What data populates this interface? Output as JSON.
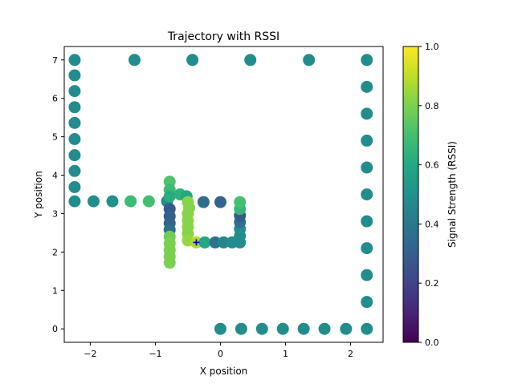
{
  "chart_data": {
    "type": "scatter",
    "title": "Trajectory with RSSI",
    "xlabel": "X position",
    "ylabel": "Y position",
    "xlim": [
      -2.4,
      2.5
    ],
    "ylim": [
      -0.35,
      7.35
    ],
    "xticks": [
      -2,
      -1,
      0,
      1,
      2
    ],
    "xtick_labels": [
      "−2",
      "−1",
      "0",
      "1",
      "2"
    ],
    "yticks": [
      0,
      1,
      2,
      3,
      4,
      5,
      6,
      7
    ],
    "ytick_labels": [
      "0",
      "1",
      "2",
      "3",
      "4",
      "5",
      "6",
      "7"
    ],
    "grid": false,
    "colormap": "viridis",
    "colorbar": {
      "label": "Signal Strength (RSSI)",
      "range": [
        0.0,
        1.0
      ],
      "ticks": [
        0.0,
        0.2,
        0.4,
        0.6,
        0.8,
        1.0
      ],
      "tick_labels": [
        "0.0",
        "0.2",
        "0.4",
        "0.6",
        "0.8",
        "1.0"
      ]
    },
    "marker_color": "#0000cc",
    "marker": [
      -0.37,
      2.25
    ],
    "points": [
      {
        "x": -2.24,
        "y": 7.0,
        "rssi": 0.48
      },
      {
        "x": -2.24,
        "y": 6.6,
        "rssi": 0.48
      },
      {
        "x": -2.24,
        "y": 6.19,
        "rssi": 0.48
      },
      {
        "x": -2.24,
        "y": 5.77,
        "rssi": 0.48
      },
      {
        "x": -2.24,
        "y": 5.36,
        "rssi": 0.48
      },
      {
        "x": -2.24,
        "y": 4.94,
        "rssi": 0.48
      },
      {
        "x": -2.24,
        "y": 4.52,
        "rssi": 0.48
      },
      {
        "x": -2.24,
        "y": 4.11,
        "rssi": 0.48
      },
      {
        "x": -2.24,
        "y": 3.69,
        "rssi": 0.48
      },
      {
        "x": -2.24,
        "y": 3.32,
        "rssi": 0.48
      },
      {
        "x": -1.95,
        "y": 3.32,
        "rssi": 0.48
      },
      {
        "x": -1.66,
        "y": 3.32,
        "rssi": 0.5
      },
      {
        "x": -1.38,
        "y": 3.32,
        "rssi": 0.68
      },
      {
        "x": -1.1,
        "y": 3.32,
        "rssi": 0.7
      },
      {
        "x": -0.82,
        "y": 3.32,
        "rssi": 0.48
      },
      {
        "x": -0.78,
        "y": 3.83,
        "rssi": 0.72
      },
      {
        "x": -0.78,
        "y": 3.62,
        "rssi": 0.68
      },
      {
        "x": -0.78,
        "y": 3.45,
        "rssi": 0.62
      },
      {
        "x": -0.78,
        "y": 3.12,
        "rssi": 0.28
      },
      {
        "x": -0.78,
        "y": 2.93,
        "rssi": 0.3
      },
      {
        "x": -0.78,
        "y": 2.75,
        "rssi": 0.32
      },
      {
        "x": -0.78,
        "y": 2.58,
        "rssi": 0.36
      },
      {
        "x": -0.78,
        "y": 2.4,
        "rssi": 0.78
      },
      {
        "x": -0.78,
        "y": 2.22,
        "rssi": 0.8
      },
      {
        "x": -0.78,
        "y": 2.05,
        "rssi": 0.8
      },
      {
        "x": -0.78,
        "y": 1.88,
        "rssi": 0.8
      },
      {
        "x": -0.78,
        "y": 1.72,
        "rssi": 0.8
      },
      {
        "x": -0.62,
        "y": 3.5,
        "rssi": 0.64
      },
      {
        "x": -0.52,
        "y": 3.45,
        "rssi": 0.6
      },
      {
        "x": -0.48,
        "y": 3.15,
        "rssi": 0.82
      },
      {
        "x": -0.5,
        "y": 3.3,
        "rssi": 0.82
      },
      {
        "x": -0.5,
        "y": 3.0,
        "rssi": 0.82
      },
      {
        "x": -0.5,
        "y": 2.82,
        "rssi": 0.82
      },
      {
        "x": -0.5,
        "y": 2.65,
        "rssi": 0.82
      },
      {
        "x": -0.5,
        "y": 2.48,
        "rssi": 0.82
      },
      {
        "x": -0.5,
        "y": 2.3,
        "rssi": 0.84
      },
      {
        "x": -0.37,
        "y": 2.25,
        "rssi": 0.88
      },
      {
        "x": -0.24,
        "y": 2.25,
        "rssi": 0.6
      },
      {
        "x": -0.08,
        "y": 2.25,
        "rssi": 0.38
      },
      {
        "x": 0.05,
        "y": 2.25,
        "rssi": 0.46
      },
      {
        "x": 0.18,
        "y": 2.25,
        "rssi": 0.48
      },
      {
        "x": 0.3,
        "y": 2.25,
        "rssi": 0.48
      },
      {
        "x": 0.3,
        "y": 2.42,
        "rssi": 0.48
      },
      {
        "x": 0.3,
        "y": 2.6,
        "rssi": 0.48
      },
      {
        "x": 0.3,
        "y": 2.78,
        "rssi": 0.36
      },
      {
        "x": 0.3,
        "y": 2.95,
        "rssi": 0.28
      },
      {
        "x": 0.3,
        "y": 3.12,
        "rssi": 0.66
      },
      {
        "x": 0.3,
        "y": 3.3,
        "rssi": 0.7
      },
      {
        "x": 0.0,
        "y": 3.3,
        "rssi": 0.32
      },
      {
        "x": -0.26,
        "y": 3.3,
        "rssi": 0.36
      },
      {
        "x": -1.32,
        "y": 7.0,
        "rssi": 0.48
      },
      {
        "x": -0.43,
        "y": 7.0,
        "rssi": 0.48
      },
      {
        "x": 0.46,
        "y": 7.0,
        "rssi": 0.48
      },
      {
        "x": 1.36,
        "y": 7.0,
        "rssi": 0.48
      },
      {
        "x": 2.25,
        "y": 7.0,
        "rssi": 0.48
      },
      {
        "x": 2.25,
        "y": 6.3,
        "rssi": 0.48
      },
      {
        "x": 2.25,
        "y": 5.6,
        "rssi": 0.48
      },
      {
        "x": 2.25,
        "y": 4.9,
        "rssi": 0.48
      },
      {
        "x": 2.25,
        "y": 4.2,
        "rssi": 0.48
      },
      {
        "x": 2.25,
        "y": 3.5,
        "rssi": 0.48
      },
      {
        "x": 2.25,
        "y": 2.8,
        "rssi": 0.48
      },
      {
        "x": 2.25,
        "y": 2.1,
        "rssi": 0.48
      },
      {
        "x": 2.25,
        "y": 1.4,
        "rssi": 0.48
      },
      {
        "x": 2.25,
        "y": 0.7,
        "rssi": 0.48
      },
      {
        "x": 2.25,
        "y": 0.0,
        "rssi": 0.48
      },
      {
        "x": 1.93,
        "y": 0.0,
        "rssi": 0.48
      },
      {
        "x": 1.6,
        "y": 0.0,
        "rssi": 0.48
      },
      {
        "x": 1.28,
        "y": 0.0,
        "rssi": 0.48
      },
      {
        "x": 0.96,
        "y": 0.0,
        "rssi": 0.48
      },
      {
        "x": 0.64,
        "y": 0.0,
        "rssi": 0.48
      },
      {
        "x": 0.32,
        "y": 0.0,
        "rssi": 0.48
      },
      {
        "x": 0.0,
        "y": 0.0,
        "rssi": 0.48
      }
    ]
  }
}
